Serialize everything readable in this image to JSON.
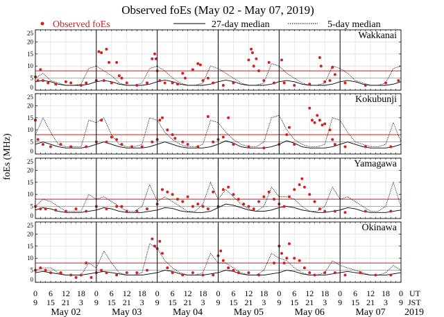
{
  "chart_data": {
    "type": "scatter",
    "title": "Observed foEs (May 02 - May 07, 2019)",
    "legend": [
      {
        "label": "Observed foEs",
        "style": "red-dot",
        "color": "#d42020"
      },
      {
        "label": "27-day median",
        "style": "solid-line",
        "color": "#000000"
      },
      {
        "label": "5-day median",
        "style": "dotted-line",
        "color": "#000000"
      }
    ],
    "legend_placement": "top",
    "ylabel": "foEs (MHz)",
    "ylim": [
      0,
      25
    ],
    "yticks": [
      0,
      5,
      10,
      15,
      20,
      25
    ],
    "xlim_hours": [
      0,
      144
    ],
    "ut_ticks": [
      "0",
      "6",
      "12",
      "18",
      "0",
      "6",
      "12",
      "18",
      "0",
      "6",
      "12",
      "18",
      "0",
      "6",
      "12",
      "18",
      "0",
      "6",
      "12",
      "18",
      "0",
      "6",
      "12",
      "18",
      "0"
    ],
    "jst_ticks": [
      "9",
      "15",
      "21",
      "3",
      "9",
      "15",
      "21",
      "3",
      "9",
      "15",
      "21",
      "3",
      "9",
      "15",
      "21",
      "3",
      "9",
      "15",
      "21",
      "3",
      "9",
      "15",
      "21",
      "3",
      "9"
    ],
    "ut_label": "UT",
    "jst_label": "JST",
    "days": [
      "May 02",
      "May 03",
      "May 04",
      "May 05",
      "May 06",
      "May 07"
    ],
    "year": "2019",
    "reference_lines": {
      "red": 8,
      "gray": 5
    },
    "median_step_hours": 3,
    "stations": [
      {
        "name": "Wakkanai",
        "median27": [
          3.5,
          4,
          3.5,
          2.5,
          2,
          2,
          2,
          2.5,
          3.5,
          4,
          3.5,
          2.5,
          2,
          2,
          2,
          2.5,
          3.5,
          4.2,
          3.6,
          2.5,
          2,
          2,
          2,
          2.5,
          3.5,
          4.2,
          3.6,
          2.5,
          2,
          2,
          2,
          2.5,
          3.5,
          4,
          3.5,
          2.5,
          2,
          2,
          2,
          2.5,
          3.5,
          4,
          3.5,
          2.5,
          2,
          2,
          2,
          2.5,
          3.5
        ],
        "median5": [
          5,
          7,
          4,
          3,
          2,
          2,
          2.5,
          9,
          10,
          8,
          6,
          3,
          2,
          2,
          3,
          9,
          10,
          8,
          5,
          3,
          2,
          2,
          3,
          10,
          9,
          7,
          5,
          3,
          2,
          2,
          3,
          11,
          10,
          7,
          5,
          3,
          2,
          2,
          3,
          10,
          9,
          7,
          4,
          3,
          2,
          2,
          3,
          9,
          10
        ],
        "observed": [
          [
            0,
            5.5
          ],
          [
            1,
            4
          ],
          [
            2,
            8.5
          ],
          [
            3,
            4
          ],
          [
            5,
            3
          ],
          [
            8,
            2.5
          ],
          [
            12,
            3.5
          ],
          [
            14,
            3
          ],
          [
            18,
            2
          ],
          [
            20,
            3
          ],
          [
            24,
            4
          ],
          [
            25,
            16
          ],
          [
            26,
            15.5
          ],
          [
            27,
            4
          ],
          [
            28,
            17
          ],
          [
            29,
            11.5
          ],
          [
            30,
            3
          ],
          [
            32,
            11.5
          ],
          [
            33,
            6
          ],
          [
            34,
            5
          ],
          [
            36,
            3
          ],
          [
            40,
            2
          ],
          [
            44,
            3
          ],
          [
            46,
            13
          ],
          [
            47,
            15
          ],
          [
            47.5,
            13
          ],
          [
            48,
            8
          ],
          [
            49,
            4
          ],
          [
            51,
            3
          ],
          [
            54,
            3
          ],
          [
            56,
            2.5
          ],
          [
            58,
            7
          ],
          [
            59,
            5
          ],
          [
            62,
            8.5
          ],
          [
            64,
            11
          ],
          [
            65,
            10.5
          ],
          [
            66,
            4
          ],
          [
            68,
            5
          ],
          [
            70,
            3
          ],
          [
            74,
            2
          ],
          [
            78,
            3
          ],
          [
            84,
            12.5
          ],
          [
            85,
            17
          ],
          [
            85.5,
            15.5
          ],
          [
            86,
            10
          ],
          [
            87,
            13
          ],
          [
            88,
            8
          ],
          [
            90,
            4
          ],
          [
            92,
            11.5
          ],
          [
            94,
            3
          ],
          [
            97,
            12.5
          ],
          [
            98,
            3
          ],
          [
            102,
            2
          ],
          [
            108,
            2.5
          ],
          [
            112,
            13.5
          ],
          [
            112.5,
            10
          ],
          [
            114,
            3.5
          ],
          [
            116,
            4
          ],
          [
            117,
            9.5
          ],
          [
            118,
            6.5
          ],
          [
            122,
            3
          ],
          [
            130,
            2
          ],
          [
            138,
            3
          ],
          [
            143,
            4
          ]
        ]
      },
      {
        "name": "Kokubunji",
        "median27": [
          4,
          5,
          4,
          3,
          2.5,
          2.5,
          2.5,
          3,
          4,
          5,
          4,
          3,
          2.5,
          2.5,
          2.5,
          3,
          4,
          5,
          4,
          3,
          2.5,
          2.5,
          2.5,
          3,
          4,
          5.5,
          4.5,
          3,
          2.5,
          2.5,
          2.5,
          3,
          4,
          5.5,
          4.5,
          3,
          2.5,
          2.5,
          2.5,
          3,
          4,
          5,
          4,
          3,
          2.5,
          2.5,
          2.5,
          3,
          4
        ],
        "median5": [
          8,
          15,
          9,
          4,
          3,
          3,
          3,
          14,
          13,
          15,
          8,
          4,
          3,
          3,
          4,
          15,
          14,
          9,
          6,
          4,
          3,
          3,
          4,
          14,
          13,
          9,
          6,
          4,
          3,
          3,
          5,
          15,
          16,
          10,
          6,
          4,
          3,
          3,
          4,
          15,
          14,
          9,
          5,
          4,
          3,
          3,
          4,
          13,
          5
        ],
        "observed": [
          [
            0,
            14
          ],
          [
            1,
            6
          ],
          [
            3,
            4
          ],
          [
            6,
            3
          ],
          [
            10,
            4
          ],
          [
            14,
            3
          ],
          [
            20,
            3
          ],
          [
            24,
            5
          ],
          [
            26,
            14
          ],
          [
            28,
            5
          ],
          [
            30,
            7
          ],
          [
            32,
            6
          ],
          [
            34,
            4
          ],
          [
            38,
            3
          ],
          [
            42,
            3
          ],
          [
            46,
            5
          ],
          [
            48,
            6
          ],
          [
            49,
            14
          ],
          [
            50,
            15
          ],
          [
            52,
            10
          ],
          [
            54,
            8
          ],
          [
            55,
            6.5
          ],
          [
            58,
            5
          ],
          [
            60,
            4
          ],
          [
            64,
            3
          ],
          [
            68,
            15.5
          ],
          [
            70,
            5
          ],
          [
            72,
            6
          ],
          [
            74,
            7
          ],
          [
            76,
            15
          ],
          [
            78,
            4
          ],
          [
            84,
            3
          ],
          [
            90,
            2.5
          ],
          [
            96,
            4
          ],
          [
            99,
            8
          ],
          [
            100,
            11
          ],
          [
            102,
            4
          ],
          [
            108,
            19
          ],
          [
            109,
            14
          ],
          [
            110,
            13
          ],
          [
            111,
            16
          ],
          [
            112,
            14
          ],
          [
            113,
            12
          ],
          [
            114,
            12.5
          ],
          [
            116,
            10
          ],
          [
            117,
            6
          ],
          [
            118,
            4
          ],
          [
            122,
            3
          ],
          [
            130,
            3
          ],
          [
            140,
            3
          ]
        ]
      },
      {
        "name": "Yamagawa",
        "median27": [
          3.5,
          4.5,
          4,
          3,
          2.5,
          2.5,
          2.5,
          3,
          3.5,
          4.5,
          4,
          3,
          2.5,
          2.5,
          2.5,
          3,
          3.5,
          4.5,
          4.2,
          3.2,
          2.7,
          2.5,
          2.5,
          3,
          4.5,
          6,
          5.5,
          4.5,
          3.5,
          3,
          3,
          3.5,
          4.5,
          5,
          4.5,
          3.5,
          3,
          2.5,
          2.5,
          3,
          3.5,
          4.5,
          4,
          3,
          2.5,
          2.5,
          2.5,
          3,
          3.5
        ],
        "median5": [
          5,
          8,
          7,
          5,
          3,
          3,
          3,
          10,
          8,
          9,
          7,
          5,
          3,
          3,
          5,
          14,
          7,
          9,
          7,
          5,
          3,
          3,
          6,
          15,
          8,
          12,
          9,
          6,
          4,
          3,
          5,
          13,
          9,
          9,
          8,
          5,
          3,
          3,
          5,
          13,
          8,
          9,
          7,
          5,
          3,
          3,
          5,
          15,
          5
        ],
        "observed": [
          [
            0,
            5
          ],
          [
            2,
            4
          ],
          [
            4,
            4
          ],
          [
            8,
            3.5
          ],
          [
            12,
            3
          ],
          [
            16,
            4
          ],
          [
            20,
            3
          ],
          [
            24,
            5
          ],
          [
            28,
            4
          ],
          [
            32,
            5
          ],
          [
            34,
            5
          ],
          [
            36,
            3
          ],
          [
            40,
            3
          ],
          [
            44,
            4
          ],
          [
            48,
            6
          ],
          [
            50,
            12
          ],
          [
            52,
            11
          ],
          [
            54,
            10
          ],
          [
            56,
            8
          ],
          [
            58,
            7
          ],
          [
            60,
            9
          ],
          [
            62,
            5
          ],
          [
            64,
            6
          ],
          [
            66,
            5
          ],
          [
            68,
            4
          ],
          [
            70,
            11
          ],
          [
            72,
            5
          ],
          [
            74,
            12
          ],
          [
            76,
            13
          ],
          [
            78,
            10
          ],
          [
            80,
            8
          ],
          [
            82,
            6
          ],
          [
            84,
            5
          ],
          [
            86,
            4
          ],
          [
            88,
            7
          ],
          [
            90,
            9
          ],
          [
            92,
            11
          ],
          [
            94,
            8
          ],
          [
            96,
            6
          ],
          [
            98,
            5
          ],
          [
            100,
            9
          ],
          [
            102,
            12
          ],
          [
            104,
            14
          ],
          [
            105,
            16.5
          ],
          [
            106,
            13
          ],
          [
            108,
            10
          ],
          [
            110,
            7
          ],
          [
            112,
            4
          ],
          [
            114,
            3
          ],
          [
            118,
            3
          ],
          [
            122,
            2.5
          ],
          [
            130,
            3
          ],
          [
            140,
            3
          ]
        ]
      },
      {
        "name": "Okinawa",
        "median27": [
          4,
          4.5,
          4,
          3.5,
          3,
          3,
          3,
          3.5,
          4,
          4.5,
          4,
          3.5,
          3,
          3,
          3,
          3.5,
          4,
          5,
          4.5,
          3.5,
          3,
          3,
          3,
          3.5,
          4,
          5,
          4.5,
          3.5,
          3,
          3,
          3,
          3.5,
          4,
          5,
          4.5,
          3.5,
          3,
          3,
          3,
          3.5,
          4,
          4.5,
          4,
          3.5,
          3,
          3,
          3,
          3.5,
          4
        ],
        "median5": [
          5,
          6,
          6,
          4,
          3,
          3,
          3,
          8,
          6,
          13,
          8,
          4,
          3,
          3,
          4,
          16,
          14,
          9,
          6,
          4,
          3,
          3,
          4,
          12,
          8,
          8,
          6,
          4,
          3,
          3,
          5,
          12,
          10,
          9,
          6,
          4,
          3,
          3,
          4,
          9,
          7,
          6,
          5,
          4,
          3,
          3,
          4,
          7,
          5
        ],
        "observed": [
          [
            0,
            5
          ],
          [
            2,
            6
          ],
          [
            4,
            5
          ],
          [
            6,
            4
          ],
          [
            10,
            4
          ],
          [
            14,
            3
          ],
          [
            16,
            2
          ],
          [
            18,
            3
          ],
          [
            20,
            8
          ],
          [
            22,
            2
          ],
          [
            24,
            4
          ],
          [
            26,
            5
          ],
          [
            28,
            4
          ],
          [
            32,
            3
          ],
          [
            36,
            4
          ],
          [
            40,
            4
          ],
          [
            44,
            5
          ],
          [
            46,
            18
          ],
          [
            47,
            15
          ],
          [
            48,
            14
          ],
          [
            49,
            17
          ],
          [
            50,
            12
          ],
          [
            52,
            6
          ],
          [
            54,
            4
          ],
          [
            58,
            3
          ],
          [
            62,
            4
          ],
          [
            66,
            3
          ],
          [
            70,
            3
          ],
          [
            72,
            11
          ],
          [
            73,
            13
          ],
          [
            74,
            9
          ],
          [
            76,
            6
          ],
          [
            78,
            5
          ],
          [
            80,
            4
          ],
          [
            84,
            4
          ],
          [
            88,
            3
          ],
          [
            94,
            8
          ],
          [
            96,
            15
          ],
          [
            97,
            12
          ],
          [
            98,
            8
          ],
          [
            99,
            10
          ],
          [
            100,
            16
          ],
          [
            102,
            10
          ],
          [
            104,
            9
          ],
          [
            106,
            6
          ],
          [
            108,
            4
          ],
          [
            110,
            3
          ],
          [
            114,
            4
          ],
          [
            118,
            4
          ],
          [
            122,
            3
          ],
          [
            128,
            4
          ],
          [
            134,
            3
          ],
          [
            140,
            3
          ]
        ]
      }
    ]
  }
}
